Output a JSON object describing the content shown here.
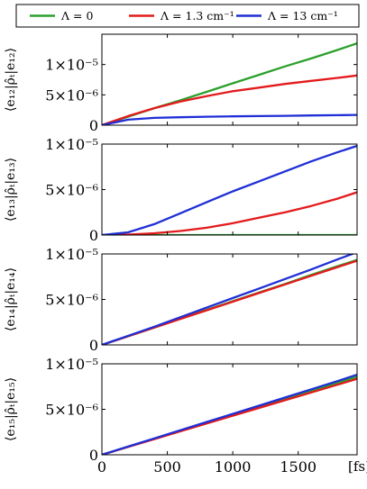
{
  "legend": {
    "entries": [
      {
        "label": "Λ = 0",
        "color": "#2ca02c"
      },
      {
        "label": "Λ = 1.3 cm⁻¹",
        "color": "#e31a1c"
      },
      {
        "label": "Λ = 13 cm⁻¹",
        "color": "#1f2fd6"
      }
    ]
  },
  "x_axis": {
    "ticks": [
      {
        "value": 0,
        "label": "0"
      },
      {
        "value": 500,
        "label": "500"
      },
      {
        "value": 1000,
        "label": "1000"
      },
      {
        "value": 1500,
        "label": "1500"
      }
    ],
    "unit": "[fs]"
  },
  "chart_data": [
    {
      "type": "line",
      "ylabel": "⟨e₁₂|ρ̂ₜ|e₁₂⟩",
      "xlim": [
        0,
        1950
      ],
      "ylim": [
        0,
        1.5e-05
      ],
      "yticks": [
        {
          "value": 0,
          "label": "0"
        },
        {
          "value": 5e-06,
          "label": "5×10⁻⁶"
        },
        {
          "value": 1e-05,
          "label": "1×10⁻⁵"
        }
      ],
      "x": [
        0,
        200,
        400,
        600,
        800,
        1000,
        1200,
        1400,
        1600,
        1800,
        1950
      ],
      "series": [
        {
          "name": "Λ = 0",
          "color": "#2ca02c",
          "values": [
            0,
            1.4e-06,
            2.8e-06,
            4.1e-06,
            5.5e-06,
            6.9e-06,
            8.3e-06,
            9.7e-06,
            1.1e-05,
            1.24e-05,
            1.35e-05
          ]
        },
        {
          "name": "Λ = 1.3 cm⁻¹",
          "color": "#e31a1c",
          "values": [
            0,
            1.5e-06,
            2.8e-06,
            3.9e-06,
            4.8e-06,
            5.6e-06,
            6.2e-06,
            6.8e-06,
            7.3e-06,
            7.8e-06,
            8.2e-06
          ]
        },
        {
          "name": "Λ = 13 cm⁻¹",
          "color": "#1f2fd6",
          "values": [
            0,
            9e-07,
            1.2e-06,
            1.3e-06,
            1.4e-06,
            1.45e-06,
            1.5e-06,
            1.55e-06,
            1.6e-06,
            1.65e-06,
            1.7e-06
          ]
        }
      ]
    },
    {
      "type": "line",
      "ylabel": "⟨e₁₃|ρ̂ₜ|e₁₃⟩",
      "xlim": [
        0,
        1950
      ],
      "ylim": [
        0,
        1e-05
      ],
      "yticks": [
        {
          "value": 0,
          "label": "0"
        },
        {
          "value": 5e-06,
          "label": "5×10⁻⁶"
        },
        {
          "value": 1e-05,
          "label": "1×10⁻⁵"
        }
      ],
      "x": [
        0,
        200,
        400,
        600,
        800,
        1000,
        1200,
        1400,
        1600,
        1800,
        1950
      ],
      "series": [
        {
          "name": "Λ = 0",
          "color": "#2ca02c",
          "values": [
            0,
            0,
            0,
            0,
            0,
            0,
            0,
            0,
            0,
            0,
            0
          ]
        },
        {
          "name": "Λ = 1.3 cm⁻¹",
          "color": "#e31a1c",
          "values": [
            0,
            5e-08,
            2e-07,
            4.5e-07,
            8e-07,
            1.3e-06,
            1.9e-06,
            2.5e-06,
            3.2e-06,
            4e-06,
            4.7e-06
          ]
        },
        {
          "name": "Λ = 13 cm⁻¹",
          "color": "#1f2fd6",
          "values": [
            0,
            3e-07,
            1.2e-06,
            2.4e-06,
            3.6e-06,
            4.8e-06,
            5.9e-06,
            7e-06,
            8.1e-06,
            9.1e-06,
            9.8e-06
          ]
        }
      ]
    },
    {
      "type": "line",
      "ylabel": "⟨e₁₄|ρ̂ₜ|e₁₄⟩",
      "xlim": [
        0,
        1950
      ],
      "ylim": [
        0,
        1e-05
      ],
      "yticks": [
        {
          "value": 0,
          "label": "0"
        },
        {
          "value": 5e-06,
          "label": "5×10⁻⁶"
        },
        {
          "value": 1e-05,
          "label": "1×10⁻⁵"
        }
      ],
      "x": [
        0,
        200,
        400,
        600,
        800,
        1000,
        1200,
        1400,
        1600,
        1800,
        1950
      ],
      "series": [
        {
          "name": "Λ = 0",
          "color": "#2ca02c",
          "values": [
            0,
            9.5e-07,
            1.9e-06,
            2.9e-06,
            3.85e-06,
            4.8e-06,
            5.75e-06,
            6.7e-06,
            7.7e-06,
            8.65e-06,
            9.35e-06
          ]
        },
        {
          "name": "Λ = 1.3 cm⁻¹",
          "color": "#e31a1c",
          "values": [
            0,
            9.5e-07,
            1.9e-06,
            2.85e-06,
            3.8e-06,
            4.75e-06,
            5.7e-06,
            6.65e-06,
            7.6e-06,
            8.55e-06,
            9.25e-06
          ]
        },
        {
          "name": "Λ = 13 cm⁻¹",
          "color": "#1f2fd6",
          "values": [
            0,
            1e-06,
            2e-06,
            3.05e-06,
            4.1e-06,
            5.15e-06,
            6.2e-06,
            7.25e-06,
            8.3e-06,
            9.4e-06,
            1.02e-05
          ]
        }
      ]
    },
    {
      "type": "line",
      "ylabel": "⟨e₁₅|ρ̂ₜ|e₁₅⟩",
      "xlim": [
        0,
        1950
      ],
      "ylim": [
        0,
        1e-05
      ],
      "yticks": [
        {
          "value": 0,
          "label": "0"
        },
        {
          "value": 5e-06,
          "label": "5×10⁻⁶"
        },
        {
          "value": 1e-05,
          "label": "1×10⁻⁵"
        }
      ],
      "x": [
        0,
        200,
        400,
        600,
        800,
        1000,
        1200,
        1400,
        1600,
        1800,
        1950
      ],
      "series": [
        {
          "name": "Λ = 0",
          "color": "#2ca02c",
          "values": [
            0,
            8.8e-07,
            1.76e-06,
            2.64e-06,
            3.52e-06,
            4.4e-06,
            5.28e-06,
            6.16e-06,
            7.04e-06,
            7.92e-06,
            8.55e-06
          ]
        },
        {
          "name": "Λ = 1.3 cm⁻¹",
          "color": "#e31a1c",
          "values": [
            0,
            8.6e-07,
            1.72e-06,
            2.58e-06,
            3.44e-06,
            4.3e-06,
            5.15e-06,
            6e-06,
            6.85e-06,
            7.7e-06,
            8.35e-06
          ]
        },
        {
          "name": "Λ = 13 cm⁻¹",
          "color": "#1f2fd6",
          "values": [
            0,
            9e-07,
            1.8e-06,
            2.7e-06,
            3.6e-06,
            4.5e-06,
            5.4e-06,
            6.3e-06,
            7.2e-06,
            8.1e-06,
            8.8e-06
          ]
        }
      ]
    }
  ]
}
